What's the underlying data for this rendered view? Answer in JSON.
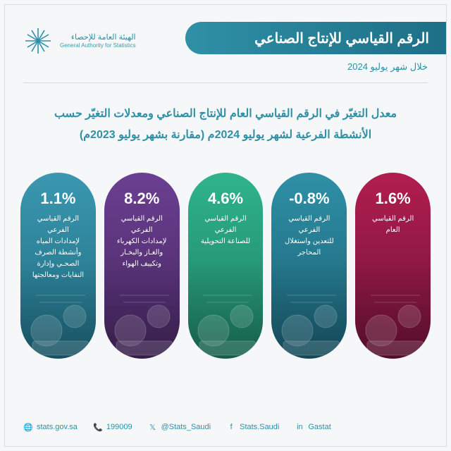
{
  "colors": {
    "brand": "#2a90a7",
    "band_grad_a": "#2f90a6",
    "band_grad_b": "#1d6f86",
    "bg": "#f5f7f8",
    "divider": "#d3d9dc"
  },
  "header": {
    "title": "الرقم القياسي للإنتاج الصناعي",
    "subtitle": "خلال شهر يوليو 2024"
  },
  "logo": {
    "ar": "الهيئة العامة للإحصاء",
    "en": "General Authority for Statistics"
  },
  "description": {
    "line1": "معدل التغيّر في الرقم القياسي العام للإنتاج الصناعي ومعدلات التغيّر حسب",
    "line2": "الأنشطة الفرعية لشهر يوليو 2024م (مقارنة بشهر يوليو 2023م)"
  },
  "cards": [
    {
      "pct": "1.6%",
      "label": "الرقم القياسي\nالعام",
      "color_top": "#b11e4f",
      "color_bot": "#6e1238"
    },
    {
      "pct": "-0.8%",
      "label": "الرقم القياسي الفرعي\nللتعدين واستغلال\nالمحاجر",
      "color_top": "#2f90a6",
      "color_bot": "#1a5f73"
    },
    {
      "pct": "4.6%",
      "label": "الرقم القياسي الفرعي\nللصناعة التحويلية",
      "color_top": "#2fb48d",
      "color_bot": "#1e7d62"
    },
    {
      "pct": "8.2%",
      "label": "الرقم القياسي الفرعي\nلإمدادات الكهرباء\nوالغـاز والبخـار\nوتكييف الهواء",
      "color_top": "#6b3f92",
      "color_bot": "#46275f"
    },
    {
      "pct": "1.1%",
      "label": "الرقم القياسي الفرعي\nلإمدادات المياه\nوأنشطة الصرف\nالصحـي وإدارة\nالنفايات ومعالجتها",
      "color_top": "#3a98b0",
      "color_bot": "#1f6b80"
    }
  ],
  "footer": [
    {
      "icon": "🌐",
      "text": "stats.gov.sa"
    },
    {
      "icon": "📞",
      "text": "199009"
    },
    {
      "icon": "𝕏",
      "text": "@Stats_Saudi"
    },
    {
      "icon": "f",
      "text": "Stats.Saudi"
    },
    {
      "icon": "in",
      "text": "Gastat"
    }
  ]
}
